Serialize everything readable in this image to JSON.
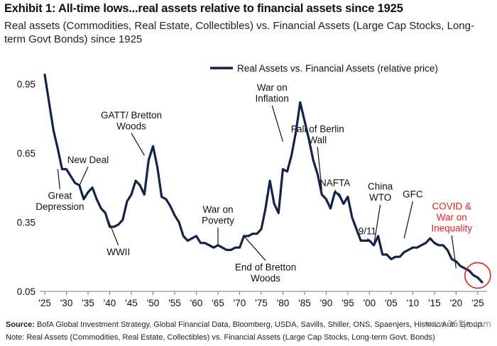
{
  "header": {
    "title": "Exhibit 1: All-time lows...real assets relative to financial assets since 1925",
    "subtitle": "Real assets (Commodities, Real Estate, Collectibles) vs. Financial Assets (Large Cap Stocks, Long-term Govt Bonds) since 1925"
  },
  "footer": {
    "source_label": "Source:",
    "source_text": " BofA Global Investment Strategy, Global Financial Data, Bloomberg, USDA, Savills, Shiller, ONS, Spaenjers, Historic Auto Group.",
    "note_text": "Note: Real Assets (Commodities, Real Estate, Collectibles) vs. Financial Assets (Large Cap Stocks, Long-term Govt. Bonds)"
  },
  "watermark": "www.365jz.com",
  "colors": {
    "series": "#14234b",
    "highlight": "#e02020",
    "text": "#111111"
  },
  "chart_data": {
    "type": "line",
    "legend": {
      "label": "Real Assets vs. Financial Assets (relative price)",
      "position": "top"
    },
    "x_tick_labels": [
      "'25",
      "'30",
      "'35",
      "'40",
      "'45",
      "'50",
      "'55",
      "'60",
      "'65",
      "'70",
      "'75",
      "'80",
      "'85",
      "'90",
      "'95",
      "'00",
      "'05",
      "'10",
      "'15",
      "'20",
      "'25"
    ],
    "x_ticks": [
      1925,
      1930,
      1935,
      1940,
      1945,
      1950,
      1955,
      1960,
      1965,
      1970,
      1975,
      1980,
      1985,
      1990,
      1995,
      2000,
      2005,
      2010,
      2015,
      2020,
      2025
    ],
    "y_tick_labels": [
      "0.95",
      "0.65",
      "0.35",
      "0.05"
    ],
    "y_ticks": [
      0.95,
      0.65,
      0.35,
      0.05
    ],
    "xlim": [
      1924.5,
      2026.5
    ],
    "ylim": [
      0.05,
      1.0
    ],
    "grid": false,
    "series": [
      {
        "name": "Real Assets vs. Financial Assets (relative price)",
        "points": [
          [
            1925,
            0.99
          ],
          [
            1926,
            0.87
          ],
          [
            1927,
            0.75
          ],
          [
            1928,
            0.67
          ],
          [
            1929,
            0.58
          ],
          [
            1930,
            0.58
          ],
          [
            1931,
            0.55
          ],
          [
            1932,
            0.52
          ],
          [
            1933,
            0.51
          ],
          [
            1934,
            0.45
          ],
          [
            1935,
            0.48
          ],
          [
            1936,
            0.5
          ],
          [
            1937,
            0.45
          ],
          [
            1938,
            0.41
          ],
          [
            1939,
            0.39
          ],
          [
            1940,
            0.33
          ],
          [
            1941,
            0.33
          ],
          [
            1942,
            0.34
          ],
          [
            1943,
            0.36
          ],
          [
            1944,
            0.44
          ],
          [
            1945,
            0.47
          ],
          [
            1946,
            0.53
          ],
          [
            1947,
            0.51
          ],
          [
            1948,
            0.47
          ],
          [
            1949,
            0.62
          ],
          [
            1950,
            0.68
          ],
          [
            1951,
            0.59
          ],
          [
            1952,
            0.46
          ],
          [
            1953,
            0.45
          ],
          [
            1954,
            0.42
          ],
          [
            1955,
            0.38
          ],
          [
            1956,
            0.35
          ],
          [
            1957,
            0.29
          ],
          [
            1958,
            0.27
          ],
          [
            1959,
            0.28
          ],
          [
            1960,
            0.29
          ],
          [
            1961,
            0.26
          ],
          [
            1962,
            0.26
          ],
          [
            1963,
            0.25
          ],
          [
            1964,
            0.24
          ],
          [
            1965,
            0.25
          ],
          [
            1966,
            0.24
          ],
          [
            1967,
            0.23
          ],
          [
            1968,
            0.23
          ],
          [
            1969,
            0.24
          ],
          [
            1970,
            0.24
          ],
          [
            1971,
            0.29
          ],
          [
            1972,
            0.29
          ],
          [
            1973,
            0.3
          ],
          [
            1974,
            0.3
          ],
          [
            1975,
            0.32
          ],
          [
            1976,
            0.41
          ],
          [
            1977,
            0.53
          ],
          [
            1978,
            0.43
          ],
          [
            1979,
            0.39
          ],
          [
            1980,
            0.58
          ],
          [
            1981,
            0.57
          ],
          [
            1982,
            0.64
          ],
          [
            1983,
            0.74
          ],
          [
            1984,
            0.87
          ],
          [
            1985,
            0.79
          ],
          [
            1986,
            0.71
          ],
          [
            1987,
            0.62
          ],
          [
            1988,
            0.56
          ],
          [
            1989,
            0.47
          ],
          [
            1990,
            0.45
          ],
          [
            1991,
            0.41
          ],
          [
            1992,
            0.48
          ],
          [
            1993,
            0.47
          ],
          [
            1994,
            0.43
          ],
          [
            1995,
            0.46
          ],
          [
            1996,
            0.37
          ],
          [
            1997,
            0.32
          ],
          [
            1998,
            0.27
          ],
          [
            1999,
            0.27
          ],
          [
            2000,
            0.27
          ],
          [
            2001,
            0.25
          ],
          [
            2002,
            0.29
          ],
          [
            2003,
            0.21
          ],
          [
            2004,
            0.21
          ],
          [
            2005,
            0.19
          ],
          [
            2006,
            0.2
          ],
          [
            2007,
            0.2
          ],
          [
            2008,
            0.22
          ],
          [
            2009,
            0.23
          ],
          [
            2010,
            0.24
          ],
          [
            2011,
            0.24
          ],
          [
            2012,
            0.25
          ],
          [
            2013,
            0.26
          ],
          [
            2014,
            0.28
          ],
          [
            2015,
            0.26
          ],
          [
            2016,
            0.25
          ],
          [
            2017,
            0.25
          ],
          [
            2018,
            0.23
          ],
          [
            2019,
            0.19
          ],
          [
            2020,
            0.18
          ],
          [
            2021,
            0.16
          ],
          [
            2022,
            0.15
          ],
          [
            2023,
            0.14
          ],
          [
            2024,
            0.12
          ],
          [
            2025,
            0.11
          ],
          [
            2026,
            0.09
          ]
        ]
      }
    ],
    "annotations": [
      {
        "id": "great-depression",
        "text": "Great\nDepression",
        "year": 1928,
        "value": 0.58,
        "label_year": 1928.5,
        "label_value": 0.44,
        "color": "#111111"
      },
      {
        "id": "new-deal",
        "text": "New Deal",
        "year": 1933,
        "value": 0.51,
        "label_year": 1935,
        "label_value": 0.62,
        "color": "#111111"
      },
      {
        "id": "wwii",
        "text": "WWII",
        "year": 1939,
        "value": 0.39,
        "label_year": 1942,
        "label_value": 0.22,
        "color": "#111111"
      },
      {
        "id": "gatt-bretton-woods",
        "text": "GATT/ Bretton\nWoods",
        "year": 1948,
        "value": 0.64,
        "label_year": 1945,
        "label_value": 0.79,
        "color": "#111111"
      },
      {
        "id": "war-on-poverty",
        "text": "War on\nPoverty",
        "year": 1965,
        "value": 0.25,
        "label_year": 1965,
        "label_value": 0.38,
        "color": "#111111"
      },
      {
        "id": "end-of-bretton-woods",
        "text": "End of Bretton\nWoods",
        "year": 1971,
        "value": 0.29,
        "label_year": 1976,
        "label_value": 0.13,
        "color": "#111111"
      },
      {
        "id": "war-on-inflation",
        "text": "War on\nInflation",
        "year": 1980,
        "value": 0.7,
        "label_year": 1977.5,
        "label_value": 0.91,
        "color": "#111111"
      },
      {
        "id": "fall-of-berlin-wall",
        "text": "Fall of Berlin\nWall",
        "year": 1989,
        "value": 0.49,
        "label_year": 1988,
        "label_value": 0.73,
        "color": "#111111"
      },
      {
        "id": "nafta",
        "text": "NAFTA",
        "year": 1994,
        "value": 0.43,
        "label_year": 1992,
        "label_value": 0.52,
        "color": "#111111"
      },
      {
        "id": "9-11",
        "text": "9/11",
        "year": 2001,
        "value": 0.25,
        "label_year": 1999.5,
        "label_value": 0.31,
        "color": "#111111"
      },
      {
        "id": "china-wto",
        "text": "China\nWTO",
        "year": 2001,
        "value": 0.25,
        "label_year": 2002.5,
        "label_value": 0.48,
        "color": "#111111"
      },
      {
        "id": "gfc",
        "text": "GFC",
        "year": 2008,
        "value": 0.28,
        "label_year": 2010,
        "label_value": 0.47,
        "color": "#111111"
      },
      {
        "id": "covid-war-on-inequality",
        "text": "COVID &\nWar on\nInequality",
        "year": 2020,
        "value": 0.15,
        "label_year": 2019,
        "label_value": 0.37,
        "color": "#e02020"
      }
    ]
  }
}
